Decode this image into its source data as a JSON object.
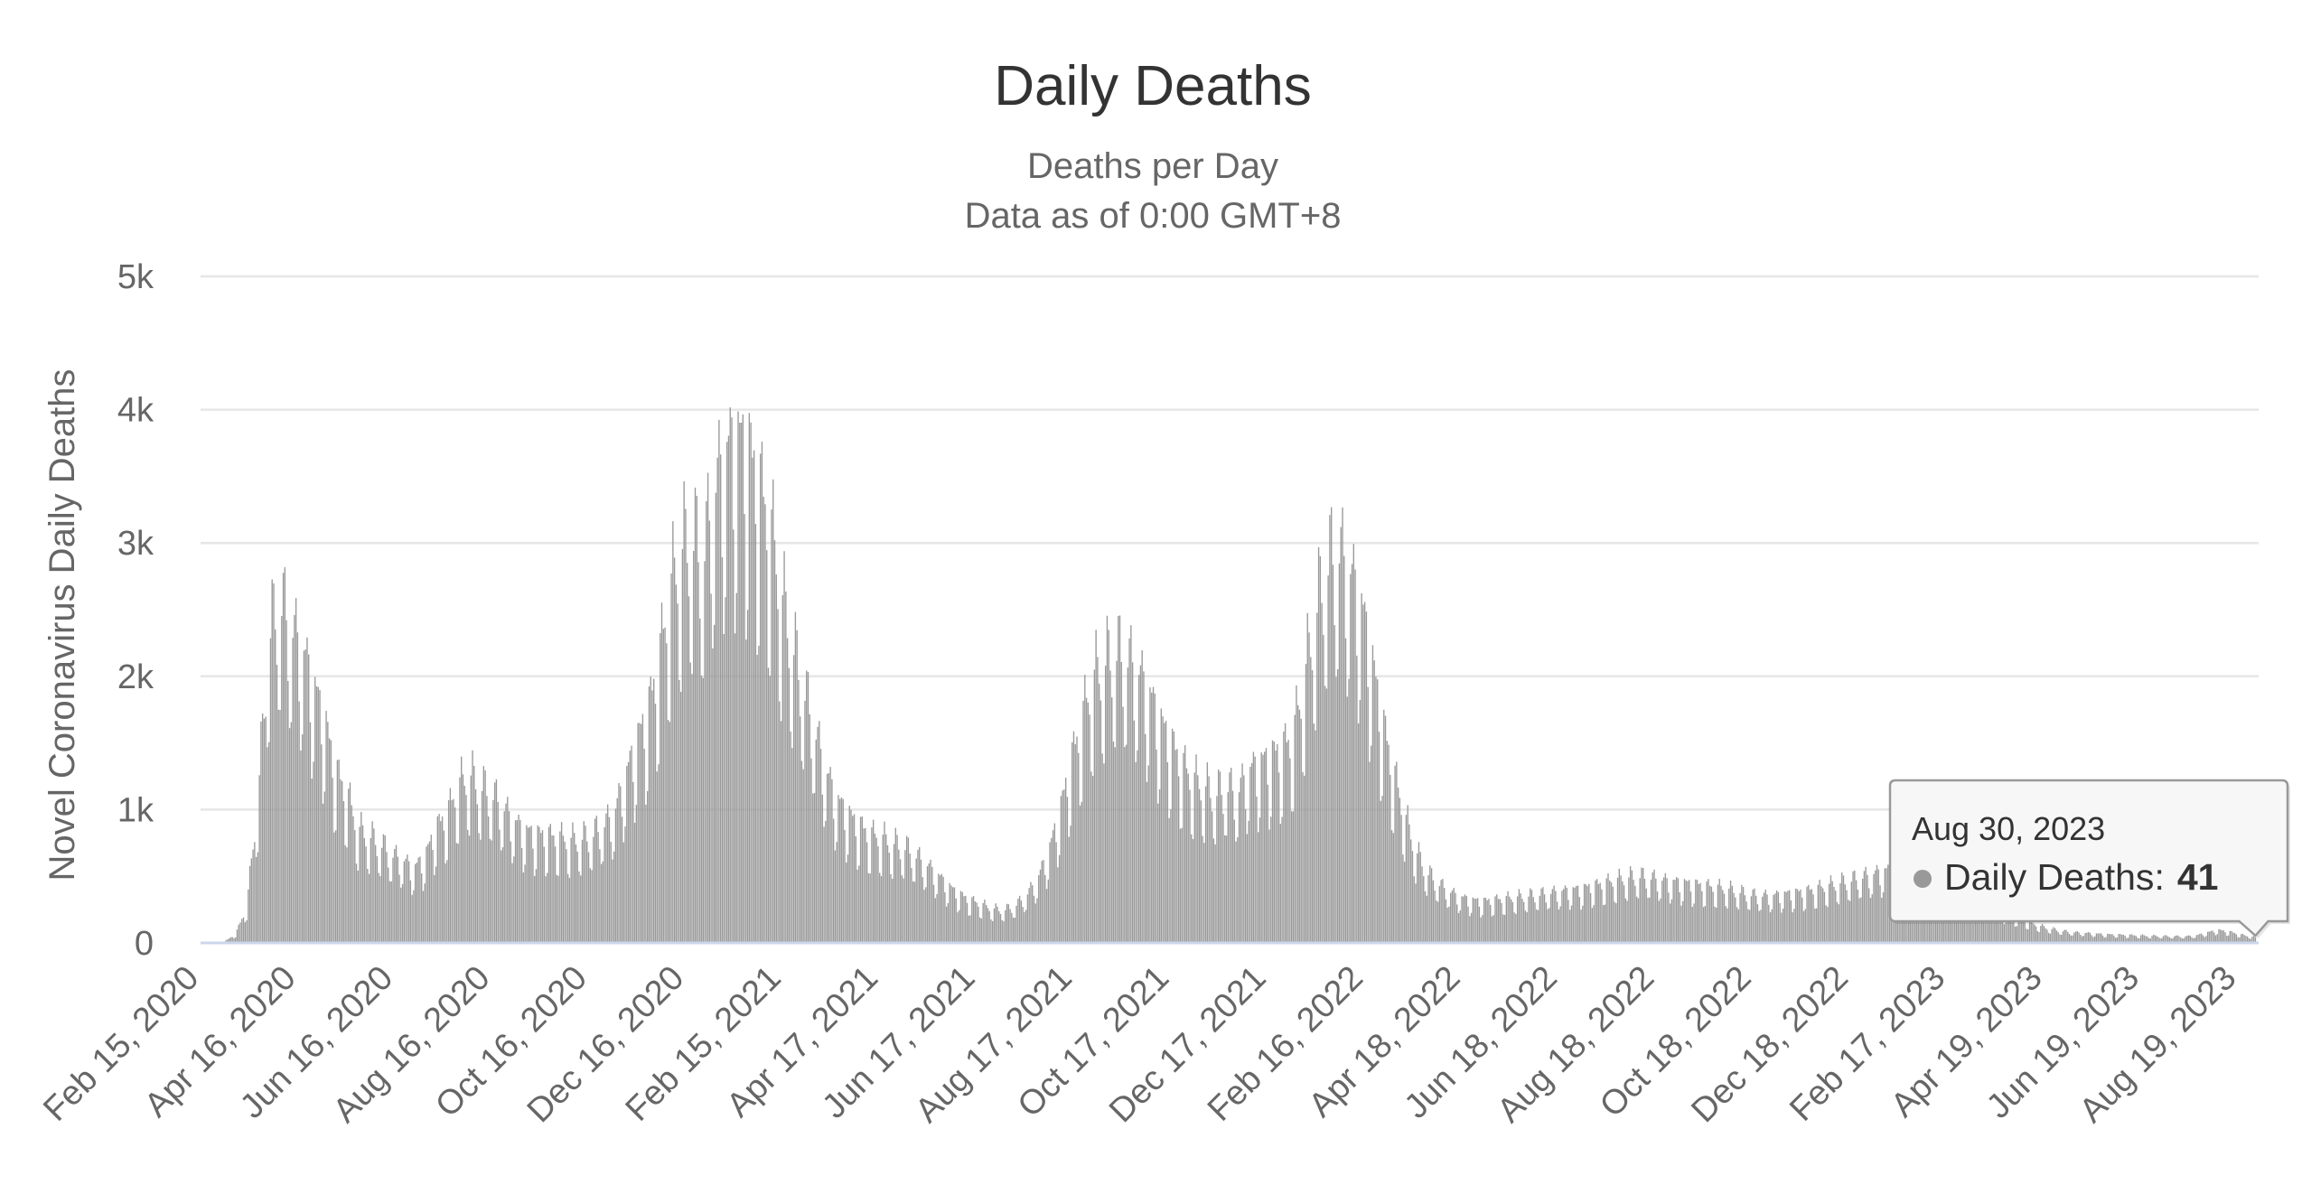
{
  "chart_data": {
    "type": "bar",
    "title": "Daily Deaths",
    "subtitle_lines": [
      "Deaths per Day",
      "Data as of 0:00 GMT+8"
    ],
    "ylabel": "Novel Coronavirus Daily Deaths",
    "xlabel": "",
    "ylim": [
      0,
      5000
    ],
    "yticks": [
      {
        "value": 0,
        "label": "0"
      },
      {
        "value": 1000,
        "label": "1k"
      },
      {
        "value": 2000,
        "label": "2k"
      },
      {
        "value": 3000,
        "label": "3k"
      },
      {
        "value": 4000,
        "label": "4k"
      },
      {
        "value": 5000,
        "label": "5k"
      }
    ],
    "x_range": [
      "2020-02-15",
      "2023-09-01"
    ],
    "xticks": [
      {
        "date": "2020-02-15",
        "label": "Feb 15, 2020"
      },
      {
        "date": "2020-04-16",
        "label": "Apr 16, 2020"
      },
      {
        "date": "2020-06-16",
        "label": "Jun 16, 2020"
      },
      {
        "date": "2020-08-16",
        "label": "Aug 16, 2020"
      },
      {
        "date": "2020-10-16",
        "label": "Oct 16, 2020"
      },
      {
        "date": "2020-12-16",
        "label": "Dec 16, 2020"
      },
      {
        "date": "2021-02-15",
        "label": "Feb 15, 2021"
      },
      {
        "date": "2021-04-17",
        "label": "Apr 17, 2021"
      },
      {
        "date": "2021-06-17",
        "label": "Jun 17, 2021"
      },
      {
        "date": "2021-08-17",
        "label": "Aug 17, 2021"
      },
      {
        "date": "2021-10-17",
        "label": "Oct 17, 2021"
      },
      {
        "date": "2021-12-17",
        "label": "Dec 17, 2021"
      },
      {
        "date": "2022-02-16",
        "label": "Feb 16, 2022"
      },
      {
        "date": "2022-04-18",
        "label": "Apr 18, 2022"
      },
      {
        "date": "2022-06-18",
        "label": "Jun 18, 2022"
      },
      {
        "date": "2022-08-18",
        "label": "Aug 18, 2022"
      },
      {
        "date": "2022-10-18",
        "label": "Oct 18, 2022"
      },
      {
        "date": "2022-12-18",
        "label": "Dec 18, 2022"
      },
      {
        "date": "2023-02-17",
        "label": "Feb 17, 2023"
      },
      {
        "date": "2023-04-19",
        "label": "Apr 19, 2023"
      },
      {
        "date": "2023-06-19",
        "label": "Jun 19, 2023"
      },
      {
        "date": "2023-08-19",
        "label": "Aug 19, 2023"
      }
    ],
    "grid": true,
    "legend": "none",
    "bar_color": "#999999",
    "series": [
      {
        "name": "Daily Deaths",
        "points": [
          [
            "2020-03-01",
            10
          ],
          [
            "2020-03-08",
            60
          ],
          [
            "2020-03-15",
            250
          ],
          [
            "2020-03-22",
            1000
          ],
          [
            "2020-03-29",
            2150
          ],
          [
            "2020-04-05",
            2400
          ],
          [
            "2020-04-12",
            2200
          ],
          [
            "2020-04-19",
            2050
          ],
          [
            "2020-04-26",
            1800
          ],
          [
            "2020-05-03",
            1550
          ],
          [
            "2020-05-10",
            1200
          ],
          [
            "2020-05-17",
            1050
          ],
          [
            "2020-05-24",
            800
          ],
          [
            "2020-05-31",
            750
          ],
          [
            "2020-06-07",
            700
          ],
          [
            "2020-06-14",
            620
          ],
          [
            "2020-06-21",
            580
          ],
          [
            "2020-06-28",
            520
          ],
          [
            "2020-07-05",
            600
          ],
          [
            "2020-07-12",
            800
          ],
          [
            "2020-07-19",
            900
          ],
          [
            "2020-07-26",
            1100
          ],
          [
            "2020-08-02",
            1180
          ],
          [
            "2020-08-09",
            1100
          ],
          [
            "2020-08-16",
            1050
          ],
          [
            "2020-08-23",
            950
          ],
          [
            "2020-08-30",
            850
          ],
          [
            "2020-09-06",
            780
          ],
          [
            "2020-09-13",
            760
          ],
          [
            "2020-09-20",
            750
          ],
          [
            "2020-09-27",
            740
          ],
          [
            "2020-10-04",
            720
          ],
          [
            "2020-10-11",
            730
          ],
          [
            "2020-10-18",
            760
          ],
          [
            "2020-10-25",
            820
          ],
          [
            "2020-11-01",
            900
          ],
          [
            "2020-11-08",
            1150
          ],
          [
            "2020-11-15",
            1400
          ],
          [
            "2020-11-22",
            1600
          ],
          [
            "2020-11-29",
            1950
          ],
          [
            "2020-12-06",
            2450
          ],
          [
            "2020-12-13",
            2750
          ],
          [
            "2020-12-20",
            2850
          ],
          [
            "2020-12-27",
            2700
          ],
          [
            "2021-01-03",
            3150
          ],
          [
            "2021-01-10",
            3400
          ],
          [
            "2021-01-17",
            3500
          ],
          [
            "2021-01-24",
            3450
          ],
          [
            "2021-01-31",
            3200
          ],
          [
            "2021-02-07",
            2950
          ],
          [
            "2021-02-14",
            2450
          ],
          [
            "2021-02-21",
            2100
          ],
          [
            "2021-02-28",
            1800
          ],
          [
            "2021-03-07",
            1500
          ],
          [
            "2021-03-14",
            1200
          ],
          [
            "2021-03-21",
            1000
          ],
          [
            "2021-03-28",
            900
          ],
          [
            "2021-04-04",
            820
          ],
          [
            "2021-04-11",
            760
          ],
          [
            "2021-04-18",
            740
          ],
          [
            "2021-04-25",
            700
          ],
          [
            "2021-05-02",
            680
          ],
          [
            "2021-05-09",
            620
          ],
          [
            "2021-05-16",
            550
          ],
          [
            "2021-05-23",
            480
          ],
          [
            "2021-05-30",
            400
          ],
          [
            "2021-06-06",
            340
          ],
          [
            "2021-06-13",
            300
          ],
          [
            "2021-06-20",
            270
          ],
          [
            "2021-06-27",
            240
          ],
          [
            "2021-07-04",
            230
          ],
          [
            "2021-07-11",
            260
          ],
          [
            "2021-07-18",
            330
          ],
          [
            "2021-07-25",
            440
          ],
          [
            "2021-08-01",
            630
          ],
          [
            "2021-08-08",
            900
          ],
          [
            "2021-08-15",
            1250
          ],
          [
            "2021-08-22",
            1550
          ],
          [
            "2021-08-29",
            1850
          ],
          [
            "2021-09-05",
            1950
          ],
          [
            "2021-09-12",
            2050
          ],
          [
            "2021-09-19",
            2000
          ],
          [
            "2021-09-26",
            1900
          ],
          [
            "2021-10-03",
            1750
          ],
          [
            "2021-10-10",
            1550
          ],
          [
            "2021-10-17",
            1400
          ],
          [
            "2021-10-24",
            1250
          ],
          [
            "2021-10-31",
            1150
          ],
          [
            "2021-11-07",
            1100
          ],
          [
            "2021-11-14",
            1050
          ],
          [
            "2021-11-21",
            1100
          ],
          [
            "2021-11-28",
            1050
          ],
          [
            "2021-12-05",
            1200
          ],
          [
            "2021-12-12",
            1250
          ],
          [
            "2021-12-19",
            1300
          ],
          [
            "2021-12-26",
            1350
          ],
          [
            "2022-01-02",
            1450
          ],
          [
            "2022-01-09",
            1850
          ],
          [
            "2022-01-16",
            2300
          ],
          [
            "2022-01-23",
            2650
          ],
          [
            "2022-01-30",
            2750
          ],
          [
            "2022-02-06",
            2600
          ],
          [
            "2022-02-13",
            2400
          ],
          [
            "2022-02-20",
            2000
          ],
          [
            "2022-02-27",
            1550
          ],
          [
            "2022-03-06",
            1200
          ],
          [
            "2022-03-13",
            900
          ],
          [
            "2022-03-20",
            650
          ],
          [
            "2022-03-27",
            500
          ],
          [
            "2022-04-03",
            420
          ],
          [
            "2022-04-10",
            360
          ],
          [
            "2022-04-17",
            320
          ],
          [
            "2022-04-24",
            300
          ],
          [
            "2022-05-01",
            290
          ],
          [
            "2022-05-08",
            300
          ],
          [
            "2022-05-15",
            310
          ],
          [
            "2022-05-22",
            320
          ],
          [
            "2022-05-29",
            330
          ],
          [
            "2022-06-05",
            340
          ],
          [
            "2022-06-12",
            350
          ],
          [
            "2022-06-19",
            360
          ],
          [
            "2022-06-26",
            370
          ],
          [
            "2022-07-03",
            380
          ],
          [
            "2022-07-10",
            400
          ],
          [
            "2022-07-17",
            420
          ],
          [
            "2022-07-24",
            440
          ],
          [
            "2022-07-31",
            460
          ],
          [
            "2022-08-07",
            470
          ],
          [
            "2022-08-14",
            460
          ],
          [
            "2022-08-21",
            440
          ],
          [
            "2022-08-28",
            430
          ],
          [
            "2022-09-04",
            420
          ],
          [
            "2022-09-11",
            410
          ],
          [
            "2022-09-18",
            400
          ],
          [
            "2022-09-25",
            390
          ],
          [
            "2022-10-02",
            380
          ],
          [
            "2022-10-09",
            360
          ],
          [
            "2022-10-16",
            340
          ],
          [
            "2022-10-23",
            330
          ],
          [
            "2022-10-30",
            330
          ],
          [
            "2022-11-06",
            340
          ],
          [
            "2022-11-13",
            350
          ],
          [
            "2022-11-20",
            360
          ],
          [
            "2022-11-27",
            380
          ],
          [
            "2022-12-04",
            400
          ],
          [
            "2022-12-11",
            420
          ],
          [
            "2022-12-18",
            440
          ],
          [
            "2022-12-25",
            460
          ],
          [
            "2023-01-01",
            480
          ],
          [
            "2023-01-08",
            500
          ],
          [
            "2023-01-15",
            520
          ],
          [
            "2023-01-22",
            500
          ],
          [
            "2023-01-29",
            470
          ],
          [
            "2023-02-05",
            440
          ],
          [
            "2023-02-12",
            400
          ],
          [
            "2023-02-19",
            360
          ],
          [
            "2023-02-26",
            330
          ],
          [
            "2023-03-05",
            300
          ],
          [
            "2023-03-12",
            270
          ],
          [
            "2023-03-19",
            240
          ],
          [
            "2023-03-26",
            210
          ],
          [
            "2023-04-02",
            180
          ],
          [
            "2023-04-09",
            150
          ],
          [
            "2023-04-16",
            120
          ],
          [
            "2023-04-23",
            100
          ],
          [
            "2023-04-30",
            85
          ],
          [
            "2023-05-07",
            75
          ],
          [
            "2023-05-14",
            70
          ],
          [
            "2023-05-21",
            65
          ],
          [
            "2023-05-28",
            60
          ],
          [
            "2023-06-04",
            58
          ],
          [
            "2023-06-11",
            55
          ],
          [
            "2023-06-18",
            52
          ],
          [
            "2023-06-25",
            50
          ],
          [
            "2023-07-02",
            48
          ],
          [
            "2023-07-09",
            47
          ],
          [
            "2023-07-16",
            46
          ],
          [
            "2023-07-23",
            50
          ],
          [
            "2023-07-30",
            70
          ],
          [
            "2023-08-06",
            90
          ],
          [
            "2023-08-13",
            80
          ],
          [
            "2023-08-20",
            60
          ],
          [
            "2023-08-27",
            45
          ],
          [
            "2023-08-30",
            41
          ]
        ]
      }
    ],
    "tooltip": {
      "date": "Aug 30, 2023",
      "series_name": "Daily Deaths",
      "separator": ":",
      "value": "41",
      "marker_color": "#999999"
    }
  }
}
